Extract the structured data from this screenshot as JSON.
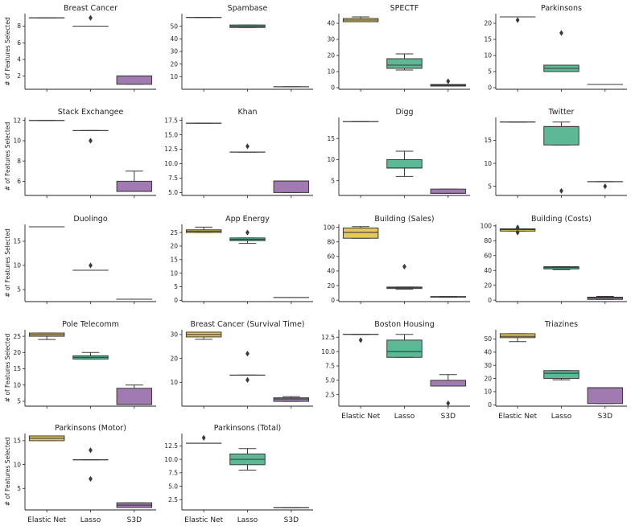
{
  "chart_data": {
    "type": "box",
    "figure_ylabel": "# of Features Selected",
    "categories": [
      "Elastic Net",
      "Lasso",
      "S3D"
    ],
    "colors": [
      "#E5C75E",
      "#5DB895",
      "#A07AB0"
    ],
    "panels": [
      {
        "title": "Breast Cancer",
        "ylim": [
          0.4,
          9.5
        ],
        "yticks": [
          2,
          4,
          6,
          8
        ],
        "boxes": [
          {
            "q1": 9,
            "med": 9,
            "q3": 9,
            "lo": 9,
            "hi": 9,
            "fliers": []
          },
          {
            "q1": 8,
            "med": 8,
            "q3": 8,
            "lo": 8,
            "hi": 8,
            "fliers": [
              9
            ]
          },
          {
            "q1": 1,
            "med": 2,
            "q3": 2,
            "lo": 1,
            "hi": 2,
            "fliers": []
          }
        ]
      },
      {
        "title": "Spambase",
        "ylim": [
          0,
          60
        ],
        "yticks": [
          10,
          20,
          30,
          40,
          50
        ],
        "boxes": [
          {
            "q1": 57,
            "med": 57,
            "q3": 57,
            "lo": 57,
            "hi": 57,
            "fliers": []
          },
          {
            "q1": 49,
            "med": 50,
            "q3": 51,
            "lo": 49,
            "hi": 51,
            "fliers": []
          },
          {
            "q1": 2,
            "med": 2,
            "q3": 2,
            "lo": 2,
            "hi": 2,
            "fliers": []
          }
        ]
      },
      {
        "title": "SPECTF",
        "ylim": [
          -1,
          46
        ],
        "yticks": [
          0,
          10,
          20,
          30,
          40
        ],
        "boxes": [
          {
            "q1": 41,
            "med": 42,
            "q3": 43,
            "lo": 41,
            "hi": 44,
            "fliers": []
          },
          {
            "q1": 12,
            "med": 14,
            "q3": 18,
            "lo": 11,
            "hi": 21,
            "fliers": []
          },
          {
            "q1": 1,
            "med": 1.5,
            "q3": 2,
            "lo": 1,
            "hi": 2,
            "fliers": [
              4
            ]
          }
        ]
      },
      {
        "title": "Parkinsons",
        "ylim": [
          -0.5,
          23
        ],
        "yticks": [
          0,
          5,
          10,
          15,
          20
        ],
        "boxes": [
          {
            "q1": 22,
            "med": 22,
            "q3": 22,
            "lo": 22,
            "hi": 22,
            "fliers": [
              21
            ]
          },
          {
            "q1": 5,
            "med": 6,
            "q3": 7,
            "lo": 5,
            "hi": 7,
            "fliers": [
              17
            ]
          },
          {
            "q1": 1,
            "med": 1,
            "q3": 1,
            "lo": 1,
            "hi": 1,
            "fliers": []
          }
        ]
      },
      {
        "title": "Stack Exchangee",
        "ylim": [
          4.6,
          12.3
        ],
        "yticks": [
          6,
          8,
          10,
          12
        ],
        "boxes": [
          {
            "q1": 12,
            "med": 12,
            "q3": 12,
            "lo": 12,
            "hi": 12,
            "fliers": []
          },
          {
            "q1": 11,
            "med": 11,
            "q3": 11,
            "lo": 11,
            "hi": 11,
            "fliers": [
              10
            ]
          },
          {
            "q1": 5,
            "med": 5,
            "q3": 6,
            "lo": 5,
            "hi": 7,
            "fliers": []
          }
        ]
      },
      {
        "title": "Khan",
        "ylim": [
          4.5,
          18
        ],
        "yticks": [
          5.0,
          7.5,
          10.0,
          12.5,
          15.0,
          17.5
        ],
        "boxes": [
          {
            "q1": 17,
            "med": 17,
            "q3": 17,
            "lo": 17,
            "hi": 17,
            "fliers": []
          },
          {
            "q1": 12,
            "med": 12,
            "q3": 12,
            "lo": 12,
            "hi": 12,
            "fliers": [
              13
            ]
          },
          {
            "q1": 5,
            "med": 7,
            "q3": 7,
            "lo": 5,
            "hi": 7,
            "fliers": []
          }
        ]
      },
      {
        "title": "Digg",
        "ylim": [
          1.5,
          20
        ],
        "yticks": [
          5,
          10,
          15
        ],
        "boxes": [
          {
            "q1": 19,
            "med": 19,
            "q3": 19,
            "lo": 19,
            "hi": 19,
            "fliers": []
          },
          {
            "q1": 8,
            "med": 8,
            "q3": 10,
            "lo": 6,
            "hi": 12,
            "fliers": []
          },
          {
            "q1": 2,
            "med": 2,
            "q3": 3,
            "lo": 2,
            "hi": 3,
            "fliers": []
          }
        ]
      },
      {
        "title": "Twitter",
        "ylim": [
          3,
          20
        ],
        "yticks": [
          5,
          10,
          15
        ],
        "boxes": [
          {
            "q1": 19,
            "med": 19,
            "q3": 19,
            "lo": 19,
            "hi": 19,
            "fliers": []
          },
          {
            "q1": 14,
            "med": 18,
            "q3": 18,
            "lo": 14,
            "hi": 19,
            "fliers": [
              4
            ]
          },
          {
            "q1": 6,
            "med": 6,
            "q3": 6,
            "lo": 6,
            "hi": 6,
            "fliers": [
              5
            ]
          }
        ]
      },
      {
        "title": "Duolingo",
        "ylim": [
          2.5,
          18.5
        ],
        "yticks": [
          5,
          10,
          15
        ],
        "boxes": [
          {
            "q1": 18,
            "med": 18,
            "q3": 18,
            "lo": 18,
            "hi": 18,
            "fliers": []
          },
          {
            "q1": 9,
            "med": 9,
            "q3": 9,
            "lo": 9,
            "hi": 9,
            "fliers": [
              10
            ]
          },
          {
            "q1": 3,
            "med": 3,
            "q3": 3,
            "lo": 3,
            "hi": 3,
            "fliers": []
          }
        ]
      },
      {
        "title": "App Energy",
        "ylim": [
          -0.5,
          28
        ],
        "yticks": [
          0,
          5,
          10,
          15,
          20,
          25
        ],
        "boxes": [
          {
            "q1": 25,
            "med": 25.5,
            "q3": 26,
            "lo": 25,
            "hi": 27,
            "fliers": []
          },
          {
            "q1": 22,
            "med": 22.5,
            "q3": 23,
            "lo": 21,
            "hi": 23,
            "fliers": [
              25
            ]
          },
          {
            "q1": 1,
            "med": 1,
            "q3": 1,
            "lo": 1,
            "hi": 1,
            "fliers": []
          }
        ]
      },
      {
        "title": "Building (Sales)",
        "ylim": [
          -2,
          104
        ],
        "yticks": [
          0,
          20,
          40,
          60,
          80,
          100
        ],
        "boxes": [
          {
            "q1": 85,
            "med": 93,
            "q3": 99,
            "lo": 85,
            "hi": 101,
            "fliers": []
          },
          {
            "q1": 16,
            "med": 17,
            "q3": 18,
            "lo": 15,
            "hi": 18,
            "fliers": [
              46
            ]
          },
          {
            "q1": 4,
            "med": 4.5,
            "q3": 5,
            "lo": 4,
            "hi": 5,
            "fliers": []
          }
        ]
      },
      {
        "title": "Building (Costs)",
        "ylim": [
          -2,
          102
        ],
        "yticks": [
          0,
          20,
          40,
          60,
          80,
          100
        ],
        "boxes": [
          {
            "q1": 93,
            "med": 95,
            "q3": 96,
            "lo": 93,
            "hi": 96,
            "fliers": [
              91,
              98
            ]
          },
          {
            "q1": 42,
            "med": 44,
            "q3": 45,
            "lo": 41,
            "hi": 45,
            "fliers": []
          },
          {
            "q1": 1,
            "med": 3,
            "q3": 4,
            "lo": 1,
            "hi": 5,
            "fliers": []
          }
        ]
      },
      {
        "title": "Pole Telecomm",
        "ylim": [
          3.5,
          27
        ],
        "yticks": [
          5,
          10,
          15,
          20,
          25
        ],
        "boxes": [
          {
            "q1": 25,
            "med": 25.5,
            "q3": 26,
            "lo": 24,
            "hi": 26,
            "fliers": []
          },
          {
            "q1": 18,
            "med": 18.5,
            "q3": 19,
            "lo": 18,
            "hi": 20,
            "fliers": []
          },
          {
            "q1": 4,
            "med": 4,
            "q3": 9,
            "lo": 4,
            "hi": 10,
            "fliers": []
          }
        ]
      },
      {
        "title": "Breast Cancer (Survival Time)",
        "ylim": [
          0,
          32
        ],
        "yticks": [
          10,
          20,
          30
        ],
        "boxes": [
          {
            "q1": 29,
            "med": 30,
            "q3": 31,
            "lo": 28,
            "hi": 31,
            "fliers": []
          },
          {
            "q1": 13,
            "med": 13,
            "q3": 13,
            "lo": 13,
            "hi": 13,
            "fliers": [
              22,
              11
            ]
          },
          {
            "q1": 2,
            "med": 3,
            "q3": 3.5,
            "lo": 2,
            "hi": 4,
            "fliers": []
          }
        ]
      },
      {
        "title": "Boston Housing",
        "ylim": [
          0.5,
          13.8
        ],
        "yticks": [
          2.5,
          5.0,
          7.5,
          10.0,
          12.5
        ],
        "boxes": [
          {
            "q1": 13,
            "med": 13,
            "q3": 13,
            "lo": 13,
            "hi": 13,
            "fliers": [
              12
            ]
          },
          {
            "q1": 9,
            "med": 10,
            "q3": 12,
            "lo": 9,
            "hi": 13,
            "fliers": []
          },
          {
            "q1": 4,
            "med": 4,
            "q3": 5,
            "lo": 4,
            "hi": 6,
            "fliers": [
              1
            ]
          }
        ]
      },
      {
        "title": "Triazines",
        "ylim": [
          -1,
          57
        ],
        "yticks": [
          0,
          10,
          20,
          30,
          40,
          50
        ],
        "boxes": [
          {
            "q1": 51,
            "med": 52,
            "q3": 54,
            "lo": 48,
            "hi": 54,
            "fliers": []
          },
          {
            "q1": 20,
            "med": 24,
            "q3": 26,
            "lo": 19,
            "hi": 26,
            "fliers": []
          },
          {
            "q1": 1,
            "med": 13,
            "q3": 13,
            "lo": 1,
            "hi": 13,
            "fliers": []
          }
        ]
      },
      {
        "title": "Parkinsons (Motor)",
        "ylim": [
          0.5,
          16.5
        ],
        "yticks": [
          5,
          10,
          15
        ],
        "boxes": [
          {
            "q1": 15,
            "med": 15.5,
            "q3": 16,
            "lo": 15,
            "hi": 16,
            "fliers": []
          },
          {
            "q1": 11,
            "med": 11,
            "q3": 11,
            "lo": 11,
            "hi": 11,
            "fliers": [
              13,
              7
            ]
          },
          {
            "q1": 1,
            "med": 1.5,
            "q3": 2,
            "lo": 1,
            "hi": 2,
            "fliers": []
          }
        ]
      },
      {
        "title": "Parkinsons (Total)",
        "ylim": [
          0.6,
          14.8
        ],
        "yticks": [
          2.5,
          5.0,
          7.5,
          10.0,
          12.5
        ],
        "boxes": [
          {
            "q1": 13,
            "med": 13,
            "q3": 13,
            "lo": 13,
            "hi": 13,
            "fliers": [
              14
            ]
          },
          {
            "q1": 9,
            "med": 10,
            "q3": 11,
            "lo": 8,
            "hi": 12,
            "fliers": []
          },
          {
            "q1": 1,
            "med": 1,
            "q3": 1,
            "lo": 1,
            "hi": 1,
            "fliers": []
          }
        ]
      }
    ]
  }
}
